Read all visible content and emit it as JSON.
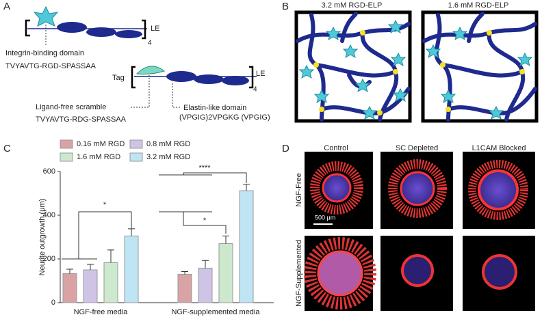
{
  "panels": {
    "a": {
      "label": "A",
      "le_top": "LE",
      "rep_top": "4",
      "integrin": "Integrin-binding domain",
      "rgd_seq": "TVYAVTG-RGD-SPASSAA",
      "tag": "Tag",
      "le_bottom": "LE",
      "rep_bottom": "4",
      "scramble": "Ligand-free scramble",
      "rdg_seq": "TVYAVTG-RDG-SPASSAA",
      "elastin": "Elastin-like domain",
      "elastin_seq": "(VPGIG)2VPGKG (VPGIG)"
    },
    "b": {
      "label": "B",
      "left_title": "3.2 mM RGD-ELP",
      "right_title": "1.6 mM RGD-ELP"
    },
    "c": {
      "label": "C"
    },
    "d": {
      "label": "D",
      "columns": [
        "Control",
        "SC Depleted",
        "L1CAM Blocked"
      ],
      "rows": [
        "NGF-Free",
        "NGF-Supplemented"
      ],
      "scale_bar": "500 μm"
    }
  },
  "chart_data": {
    "type": "bar",
    "y_label": "Neurite outgrowth (μm)",
    "categories": [
      "NGF-free media",
      "NGF-supplemented media"
    ],
    "series": [
      {
        "name": "0.16 mM RGD",
        "color": "#d9a3a6",
        "values": [
          133,
          130
        ],
        "errors": [
          20,
          12
        ]
      },
      {
        "name": "0.8 mM RGD",
        "color": "#cfc3e6",
        "values": [
          150,
          158
        ],
        "errors": [
          25,
          35
        ]
      },
      {
        "name": "1.6 mM  RGD",
        "color": "#cde9cd",
        "values": [
          183,
          270
        ],
        "errors": [
          58,
          35
        ]
      },
      {
        "name": "3.2 mM RGD",
        "color": "#bfe4f3",
        "values": [
          305,
          512
        ],
        "errors": [
          33,
          30
        ]
      }
    ],
    "ylim": [
      0,
      600
    ],
    "yticks": [
      0,
      200,
      400,
      600
    ],
    "annotations": [
      "*",
      "*",
      "****"
    ]
  }
}
